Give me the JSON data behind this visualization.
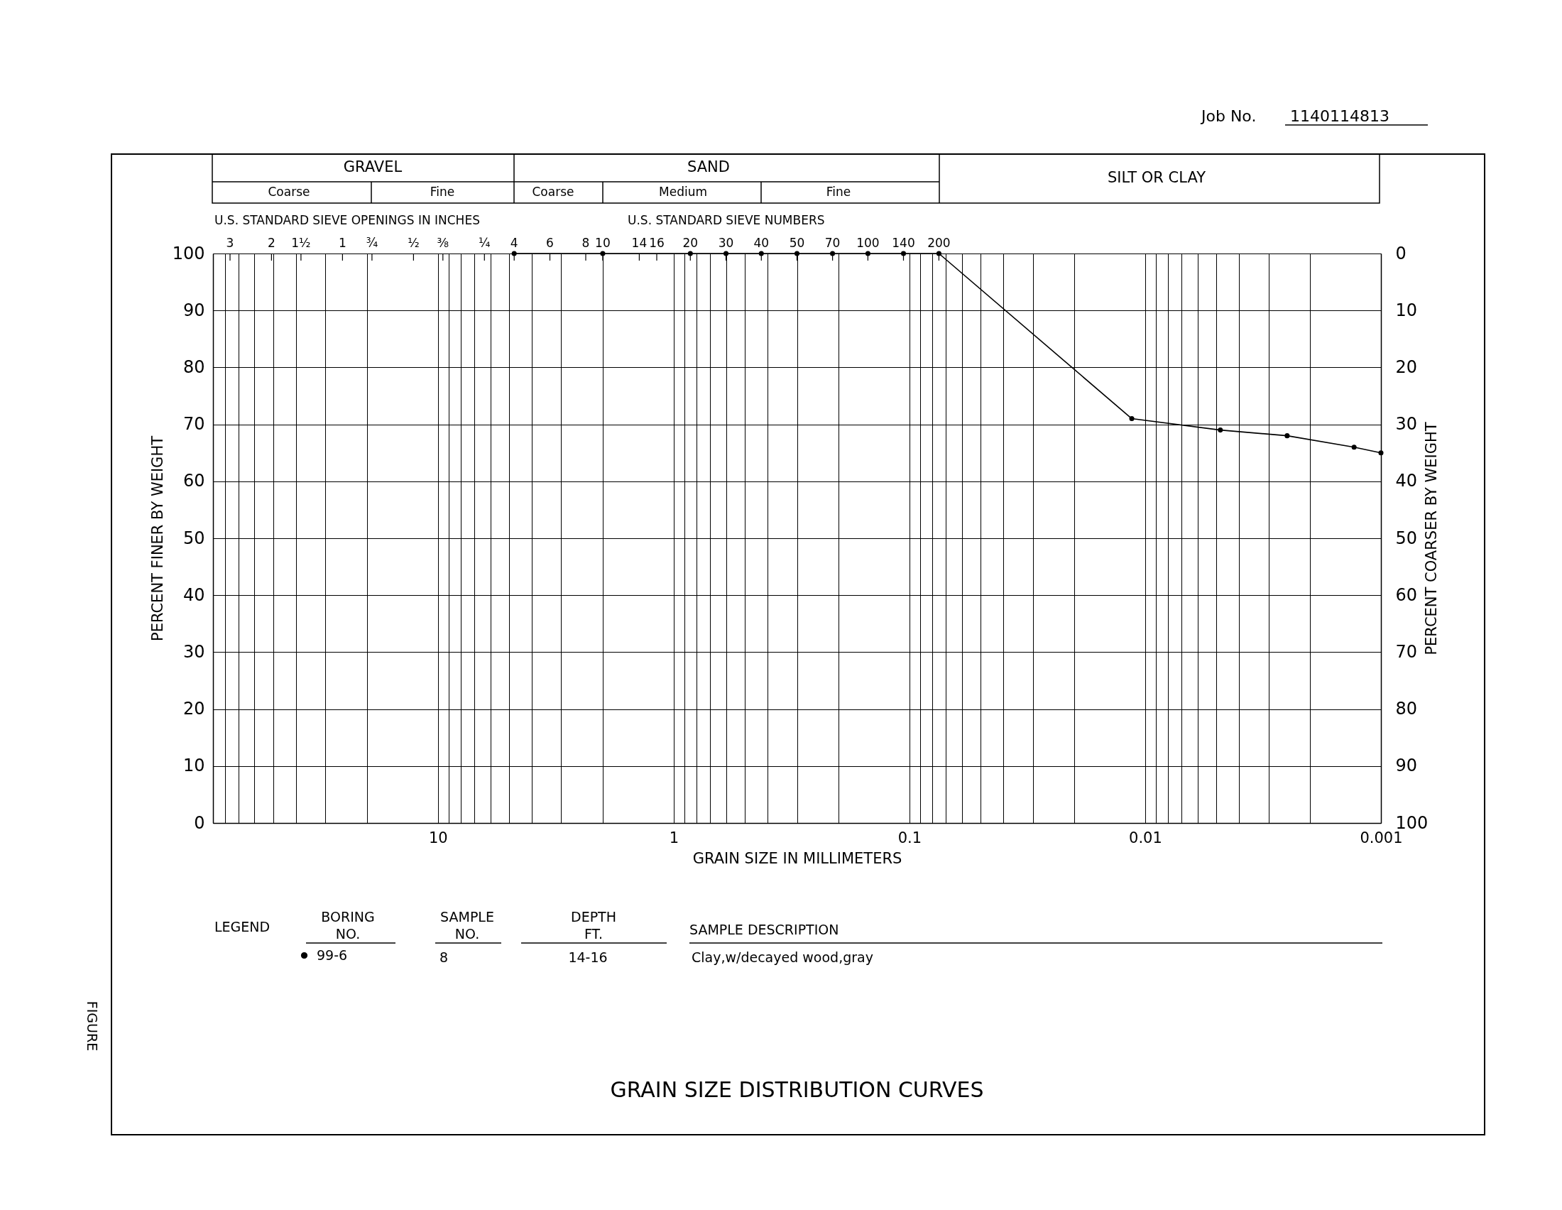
{
  "chart_data": {
    "type": "line",
    "title": "GRAIN SIZE DISTRIBUTION CURVES",
    "xlabel": "GRAIN SIZE IN MILLIMETERS",
    "ylabel": "PERCENT FINER BY WEIGHT",
    "y2label": "PERCENT COARSER BY WEIGHT",
    "legend_title": "LEGEND",
    "legend": "bottom",
    "log": "x",
    "grid": true,
    "marker": "circle",
    "xlim": [
      90,
      0.001
    ],
    "xticks": [
      {
        "value": 90,
        "label": null
      },
      {
        "value": 80,
        "label": null
      },
      {
        "value": 70,
        "label": null
      },
      {
        "value": 60,
        "label": null
      },
      {
        "value": 50,
        "label": null
      },
      {
        "value": 40,
        "label": null
      },
      {
        "value": 30,
        "label": null
      },
      {
        "value": 20,
        "label": null
      },
      10,
      {
        "value": 9,
        "label": null
      },
      {
        "value": 8,
        "label": null
      },
      {
        "value": 7,
        "label": null
      },
      {
        "value": 6,
        "label": null
      },
      {
        "value": 5,
        "label": null
      },
      {
        "value": 4,
        "label": null
      },
      {
        "value": 3,
        "label": null
      },
      {
        "value": 2,
        "label": null
      },
      1,
      {
        "value": 0.9,
        "label": null
      },
      {
        "value": 0.8,
        "label": null
      },
      {
        "value": 0.7,
        "label": null
      },
      {
        "value": 0.6,
        "label": null
      },
      {
        "value": 0.5,
        "label": null
      },
      {
        "value": 0.4,
        "label": null
      },
      {
        "value": 0.3,
        "label": null
      },
      {
        "value": 0.2,
        "label": null
      },
      0.1,
      {
        "value": 0.09,
        "label": null
      },
      {
        "value": 0.08,
        "label": null
      },
      {
        "value": 0.07,
        "label": null
      },
      {
        "value": 0.06,
        "label": null
      },
      {
        "value": 0.05,
        "label": null
      },
      {
        "value": 0.04,
        "label": null
      },
      {
        "value": 0.03,
        "label": null
      },
      {
        "value": 0.02,
        "label": null
      },
      0.01,
      {
        "value": 0.009,
        "label": null
      },
      {
        "value": 0.008,
        "label": null
      },
      {
        "value": 0.007,
        "label": null
      },
      {
        "value": 0.006,
        "label": null
      },
      {
        "value": 0.005,
        "label": null
      },
      {
        "value": 0.004,
        "label": null
      },
      {
        "value": 0.003,
        "label": null
      },
      {
        "value": 0.002,
        "label": null
      },
      0.001
    ],
    "ylim": [
      0,
      100
    ],
    "yticks": [
      0,
      10,
      20,
      30,
      40,
      50,
      60,
      70,
      80,
      90,
      100
    ],
    "y2lim": [
      100,
      0
    ],
    "y2ticks": [
      0,
      10,
      20,
      30,
      40,
      50,
      60,
      70,
      80,
      90,
      100
    ],
    "series": [
      {
        "name": "99-6",
        "color": "#000000",
        "x": [
          4.75,
          2.0,
          0.85,
          0.6,
          0.425,
          0.3,
          0.212,
          0.15,
          0.106,
          0.075,
          0.0114,
          0.0048,
          0.0025,
          0.0013,
          0.001
        ],
        "values": [
          100,
          100,
          100,
          100,
          100,
          100,
          100,
          100,
          100,
          100,
          71,
          69,
          68,
          66,
          65
        ]
      }
    ],
    "annotations": [
      "Job No.",
      "1140114813",
      "GRAVEL",
      "SAND",
      "SILT OR CLAY",
      "Coarse",
      "Fine",
      "Coarse",
      "Medium",
      "Fine",
      "U.S. STANDARD SIEVE OPENINGS IN INCHES",
      "U.S. STANDARD SIEVE NUMBERS",
      "3",
      "2",
      "1½",
      "1",
      "¾",
      "½",
      "⅜",
      "¼",
      "4",
      "6",
      "8",
      "10",
      "14",
      "16",
      "20",
      "30",
      "40",
      "50",
      "70",
      "100",
      "140",
      "200",
      "BORING NO.",
      "SAMPLE NO.",
      "DEPTH FT.",
      "SAMPLE DESCRIPTION",
      "8",
      "14-16",
      "Clay,w/decayed wood,gray",
      "FIGURE"
    ]
  }
}
